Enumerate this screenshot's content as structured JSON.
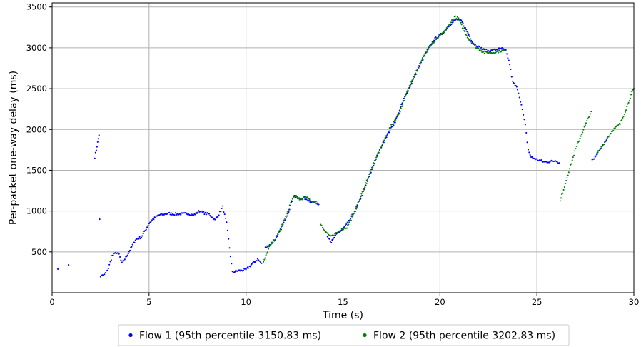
{
  "chart_data": {
    "type": "scatter",
    "title": "",
    "xlabel": "Time (s)",
    "ylabel": "Per-packet one-way delay (ms)",
    "xlim": [
      0,
      30
    ],
    "ylim": [
      0,
      3550
    ],
    "xticks": [
      0,
      5,
      10,
      15,
      20,
      25,
      30
    ],
    "yticks": [
      500,
      1000,
      1500,
      2000,
      2500,
      3000,
      3500
    ],
    "grid": true,
    "legend_position": "bottom-center",
    "series": [
      {
        "name": "Flow 1 (95th percentile 3150.83 ms)",
        "color": "#0000ff",
        "segments": [
          [
            [
              0.3,
              290
            ]
          ],
          [
            [
              0.85,
              340
            ]
          ],
          [
            [
              2.2,
              1660
            ],
            [
              2.28,
              1750
            ],
            [
              2.35,
              1840
            ],
            [
              2.42,
              1930
            ]
          ],
          [
            [
              2.45,
              900
            ]
          ],
          [
            [
              2.5,
              200
            ],
            [
              2.7,
              220
            ],
            [
              2.9,
              300
            ],
            [
              3.1,
              450
            ],
            [
              3.3,
              490
            ],
            [
              3.45,
              470
            ],
            [
              3.6,
              360
            ],
            [
              3.8,
              430
            ],
            [
              4.1,
              560
            ],
            [
              4.3,
              650
            ],
            [
              4.6,
              680
            ],
            [
              4.8,
              760
            ],
            [
              5.0,
              850
            ],
            [
              5.2,
              900
            ],
            [
              5.5,
              950
            ],
            [
              6.0,
              970
            ],
            [
              6.5,
              960
            ],
            [
              7.0,
              970
            ],
            [
              7.3,
              950
            ],
            [
              7.6,
              1000
            ],
            [
              7.9,
              970
            ],
            [
              8.1,
              960
            ],
            [
              8.4,
              890
            ],
            [
              8.6,
              960
            ],
            [
              8.8,
              1050
            ],
            [
              9.0,
              850
            ],
            [
              9.2,
              450
            ],
            [
              9.3,
              250
            ],
            [
              9.6,
              270
            ],
            [
              10.0,
              280
            ],
            [
              10.3,
              350
            ],
            [
              10.6,
              410
            ],
            [
              10.8,
              360
            ]
          ],
          [
            [
              11.0,
              550
            ],
            [
              11.3,
              600
            ],
            [
              11.6,
              680
            ],
            [
              11.9,
              830
            ],
            [
              12.2,
              1000
            ],
            [
              12.45,
              1190
            ],
            [
              12.7,
              1150
            ],
            [
              13.0,
              1160
            ],
            [
              13.3,
              1120
            ],
            [
              13.6,
              1100
            ],
            [
              13.75,
              1080
            ]
          ],
          [
            [
              14.2,
              700
            ],
            [
              14.4,
              620
            ],
            [
              14.7,
              720
            ],
            [
              15.0,
              780
            ],
            [
              15.3,
              870
            ],
            [
              15.6,
              1000
            ],
            [
              16.0,
              1200
            ],
            [
              16.4,
              1450
            ],
            [
              16.8,
              1700
            ],
            [
              17.2,
              1900
            ],
            [
              17.7,
              2100
            ],
            [
              18.1,
              2350
            ],
            [
              18.5,
              2550
            ],
            [
              18.9,
              2750
            ],
            [
              19.3,
              2950
            ],
            [
              19.7,
              3100
            ],
            [
              20.1,
              3170
            ],
            [
              20.5,
              3280
            ],
            [
              20.85,
              3350
            ],
            [
              21.1,
              3330
            ],
            [
              21.4,
              3200
            ],
            [
              21.7,
              3060
            ],
            [
              22.0,
              3010
            ],
            [
              22.3,
              2970
            ],
            [
              22.6,
              2960
            ],
            [
              22.9,
              2980
            ],
            [
              23.2,
              2990
            ],
            [
              23.4,
              2960
            ],
            [
              23.6,
              2800
            ],
            [
              23.75,
              2580
            ],
            [
              24.0,
              2500
            ],
            [
              24.2,
              2300
            ],
            [
              24.4,
              2050
            ],
            [
              24.55,
              1750
            ],
            [
              24.7,
              1660
            ],
            [
              25.0,
              1630
            ],
            [
              25.4,
              1600
            ],
            [
              25.8,
              1610
            ],
            [
              26.0,
              1620
            ],
            [
              26.15,
              1590
            ]
          ],
          [
            [
              27.85,
              1630
            ],
            [
              28.0,
              1660
            ],
            [
              28.3,
              1780
            ],
            [
              28.5,
              1840
            ],
            [
              28.6,
              1870
            ]
          ]
        ]
      },
      {
        "name": "Flow 2 (95th percentile 3202.83 ms)",
        "color": "#008000",
        "segments": [
          [
            [
              10.9,
              370
            ],
            [
              11.2,
              560
            ],
            [
              11.6,
              690
            ],
            [
              11.9,
              850
            ],
            [
              12.1,
              960
            ],
            [
              12.3,
              1100
            ],
            [
              12.5,
              1190
            ],
            [
              12.8,
              1140
            ],
            [
              13.1,
              1170
            ],
            [
              13.4,
              1120
            ],
            [
              13.7,
              1100
            ]
          ],
          [
            [
              13.85,
              840
            ],
            [
              14.0,
              780
            ],
            [
              14.3,
              700
            ],
            [
              14.5,
              690
            ],
            [
              14.8,
              760
            ],
            [
              15.2,
              800
            ],
            [
              15.6,
              980
            ],
            [
              16.0,
              1230
            ],
            [
              16.4,
              1480
            ],
            [
              16.9,
              1750
            ],
            [
              17.4,
              2010
            ],
            [
              17.9,
              2200
            ],
            [
              18.3,
              2450
            ],
            [
              18.7,
              2680
            ],
            [
              19.1,
              2870
            ],
            [
              19.5,
              3020
            ],
            [
              19.9,
              3120
            ],
            [
              20.3,
              3220
            ],
            [
              20.75,
              3380
            ],
            [
              20.95,
              3360
            ],
            [
              21.2,
              3230
            ],
            [
              21.5,
              3100
            ],
            [
              21.9,
              3000
            ],
            [
              22.3,
              2940
            ],
            [
              22.7,
              2940
            ],
            [
              23.1,
              2960
            ],
            [
              23.3,
              2970
            ]
          ],
          [
            [
              26.2,
              1120
            ],
            [
              26.6,
              1450
            ],
            [
              27.0,
              1760
            ],
            [
              27.4,
              2000
            ],
            [
              27.8,
              2220
            ]
          ],
          [
            [
              28.1,
              1700
            ],
            [
              28.5,
              1850
            ],
            [
              28.9,
              1990
            ],
            [
              29.3,
              2070
            ],
            [
              29.6,
              2250
            ],
            [
              29.9,
              2450
            ],
            [
              30.0,
              2500
            ]
          ]
        ]
      }
    ]
  }
}
